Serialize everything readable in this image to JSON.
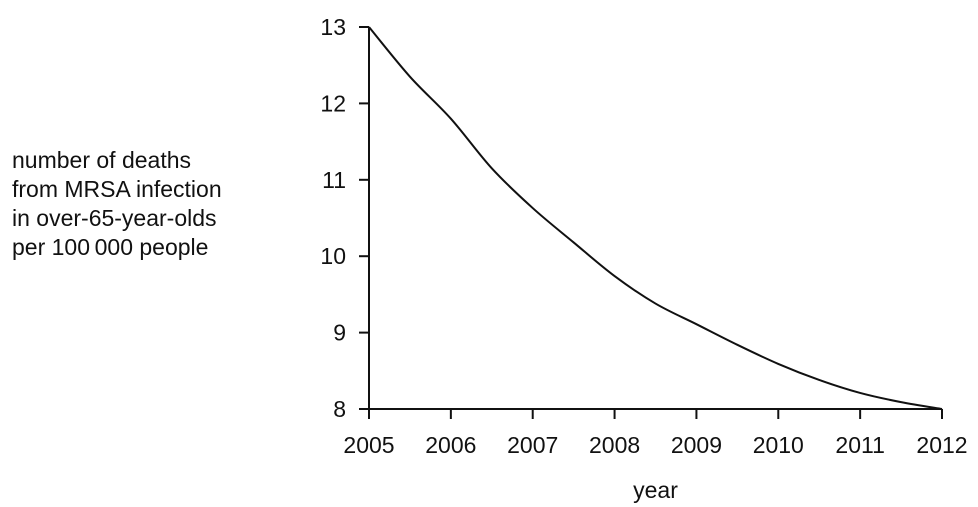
{
  "chart_data": {
    "type": "line",
    "title": "",
    "xlabel": "year",
    "ylabel_lines": [
      "number of deaths",
      "from MRSA infection",
      "in over-65-year-olds",
      "per 100 000 people"
    ],
    "x_ticks": [
      2005,
      2006,
      2007,
      2008,
      2009,
      2010,
      2011,
      2012
    ],
    "y_ticks": [
      8,
      9,
      10,
      11,
      12,
      13
    ],
    "xlim": [
      2005,
      2012
    ],
    "ylim": [
      8,
      13
    ],
    "grid": false,
    "series": [
      {
        "x": [
          2005,
          2005.5,
          2006,
          2006.5,
          2007,
          2007.5,
          2008,
          2008.5,
          2009,
          2009.5,
          2010,
          2010.5,
          2011,
          2011.5,
          2012
        ],
        "y": [
          13.0,
          12.35,
          11.8,
          11.15,
          10.63,
          10.18,
          9.74,
          9.38,
          9.11,
          8.84,
          8.59,
          8.38,
          8.21,
          8.09,
          8.0
        ],
        "color": "#111111"
      }
    ]
  }
}
